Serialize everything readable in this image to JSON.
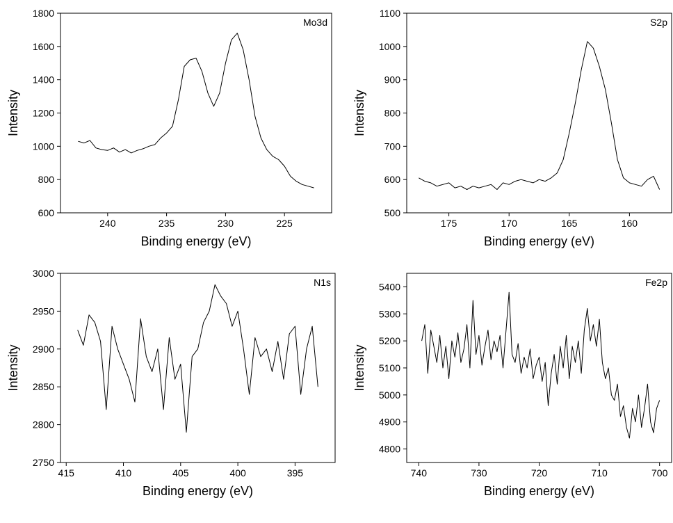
{
  "chart_data": [
    {
      "type": "line",
      "label": "Mo3d",
      "xlabel": "Binding energy (eV)",
      "ylabel": "Intensity",
      "xlim": [
        244,
        221
      ],
      "ylim": [
        600,
        1800
      ],
      "xticks": [
        240,
        235,
        230,
        225
      ],
      "yticks": [
        600,
        800,
        1000,
        1200,
        1400,
        1600,
        1800
      ],
      "grid": false,
      "series": [
        {
          "x": [
            242.5,
            242,
            241.5,
            241,
            240.5,
            240,
            239.5,
            239,
            238.5,
            238,
            237.5,
            237,
            236.5,
            236,
            235.5,
            235,
            234.5,
            234,
            233.5,
            233,
            232.5,
            232,
            231.5,
            231,
            230.5,
            230,
            229.5,
            229,
            228.5,
            228,
            227.5,
            227,
            226.5,
            226,
            225.5,
            225,
            224.5,
            224,
            223.5,
            223,
            222.5
          ],
          "y": [
            1030,
            1020,
            1035,
            990,
            980,
            975,
            990,
            965,
            980,
            960,
            975,
            985,
            1000,
            1010,
            1050,
            1080,
            1120,
            1280,
            1480,
            1520,
            1530,
            1450,
            1320,
            1240,
            1320,
            1500,
            1640,
            1680,
            1580,
            1400,
            1180,
            1050,
            980,
            940,
            920,
            880,
            820,
            790,
            770,
            760,
            750
          ]
        }
      ]
    },
    {
      "type": "line",
      "label": "S2p",
      "xlabel": "Binding energy (eV)",
      "ylabel": "Intensity",
      "xlim": [
        178.5,
        156.5
      ],
      "ylim": [
        500,
        1100
      ],
      "xticks": [
        175,
        170,
        165,
        160
      ],
      "yticks": [
        500,
        600,
        700,
        800,
        900,
        1000,
        1100
      ],
      "grid": false,
      "series": [
        {
          "x": [
            177.5,
            177,
            176.5,
            176,
            175.5,
            175,
            174.5,
            174,
            173.5,
            173,
            172.5,
            172,
            171.5,
            171,
            170.5,
            170,
            169.5,
            169,
            168.5,
            168,
            167.5,
            167,
            166.5,
            166,
            165.5,
            165,
            164.5,
            164,
            163.5,
            163,
            162.5,
            162,
            161.5,
            161,
            160.5,
            160,
            159.5,
            159,
            158.5,
            158,
            157.5
          ],
          "y": [
            605,
            595,
            590,
            580,
            585,
            590,
            575,
            580,
            570,
            580,
            575,
            580,
            585,
            570,
            590,
            585,
            595,
            600,
            595,
            590,
            600,
            595,
            605,
            620,
            660,
            740,
            830,
            930,
            1015,
            995,
            940,
            870,
            770,
            660,
            605,
            590,
            585,
            580,
            600,
            610,
            570
          ]
        }
      ]
    },
    {
      "type": "line",
      "label": "N1s",
      "xlabel": "Binding energy (eV)",
      "ylabel": "Intensity",
      "xlim": [
        415.5,
        391.5
      ],
      "ylim": [
        2750,
        3000
      ],
      "xticks": [
        415,
        410,
        405,
        400,
        395
      ],
      "yticks": [
        2750,
        2800,
        2850,
        2900,
        2950,
        3000
      ],
      "grid": false,
      "series": [
        {
          "x": [
            414,
            413.5,
            413,
            412.5,
            412,
            411.5,
            411,
            410.5,
            410,
            409.5,
            409,
            408.5,
            408,
            407.5,
            407,
            406.5,
            406,
            405.5,
            405,
            404.5,
            404,
            403.5,
            403,
            402.5,
            402,
            401.5,
            401,
            400.5,
            400,
            399.5,
            399,
            398.5,
            398,
            397.5,
            397,
            396.5,
            396,
            395.5,
            395,
            394.5,
            394,
            393.5,
            393
          ],
          "y": [
            2925,
            2905,
            2945,
            2935,
            2910,
            2820,
            2930,
            2900,
            2880,
            2860,
            2830,
            2940,
            2890,
            2870,
            2900,
            2820,
            2915,
            2860,
            2880,
            2790,
            2890,
            2900,
            2935,
            2950,
            2985,
            2970,
            2960,
            2930,
            2950,
            2900,
            2840,
            2915,
            2890,
            2900,
            2870,
            2910,
            2860,
            2920,
            2930,
            2840,
            2900,
            2930,
            2850
          ]
        }
      ]
    },
    {
      "type": "line",
      "label": "Fe2p",
      "xlabel": "Binding energy (eV)",
      "ylabel": "Intensity",
      "xlim": [
        742,
        698
      ],
      "ylim": [
        4750,
        5450
      ],
      "xticks": [
        740,
        730,
        720,
        710,
        700
      ],
      "yticks": [
        4800,
        4900,
        5000,
        5100,
        5200,
        5300,
        5400
      ],
      "grid": false,
      "series": [
        {
          "x": [
            739.5,
            739,
            738.5,
            738,
            737.5,
            737,
            736.5,
            736,
            735.5,
            735,
            734.5,
            734,
            733.5,
            733,
            732.5,
            732,
            731.5,
            731,
            730.5,
            730,
            729.5,
            729,
            728.5,
            728,
            727.5,
            727,
            726.5,
            726,
            725.5,
            725,
            724.5,
            724,
            723.5,
            723,
            722.5,
            722,
            721.5,
            721,
            720.5,
            720,
            719.5,
            719,
            718.5,
            718,
            717.5,
            717,
            716.5,
            716,
            715.5,
            715,
            714.5,
            714,
            713.5,
            713,
            712.5,
            712,
            711.5,
            711,
            710.5,
            710,
            709.5,
            709,
            708.5,
            708,
            707.5,
            707,
            706.5,
            706,
            705.5,
            705,
            704.5,
            704,
            703.5,
            703,
            702.5,
            702,
            701.5,
            701,
            700.5,
            700
          ],
          "y": [
            5200,
            5260,
            5080,
            5240,
            5180,
            5120,
            5220,
            5100,
            5180,
            5060,
            5200,
            5140,
            5230,
            5120,
            5170,
            5260,
            5100,
            5350,
            5150,
            5220,
            5110,
            5180,
            5240,
            5130,
            5200,
            5160,
            5220,
            5100,
            5240,
            5380,
            5150,
            5120,
            5190,
            5080,
            5140,
            5100,
            5170,
            5060,
            5110,
            5140,
            5050,
            5120,
            4960,
            5080,
            5150,
            5040,
            5180,
            5100,
            5220,
            5060,
            5180,
            5120,
            5200,
            5080,
            5240,
            5320,
            5200,
            5260,
            5180,
            5280,
            5120,
            5060,
            5100,
            5000,
            4980,
            5040,
            4920,
            4960,
            4880,
            4840,
            4950,
            4900,
            5000,
            4880,
            4950,
            5040,
            4900,
            4860,
            4950,
            4980
          ]
        }
      ]
    }
  ]
}
